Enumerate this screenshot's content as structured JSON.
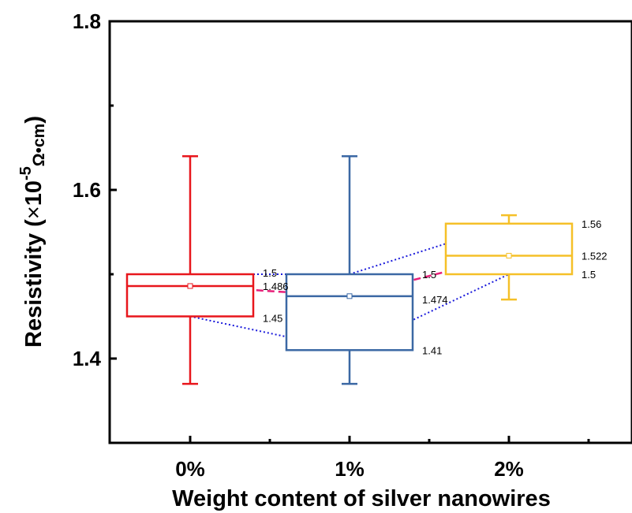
{
  "chart_data": {
    "type": "box",
    "ylim": [
      1.3,
      1.8
    ],
    "y_ticks": [
      "1.4",
      "1.6",
      "1.8"
    ],
    "categories": [
      "0%",
      "1%",
      "2%"
    ],
    "xlabel": "Weight content of silver nanowires",
    "ylabel": {
      "prefix": "Resistivity (",
      "times": "×",
      "base": "10",
      "exponent": "-5",
      "unit": "Ω•cm",
      "suffix": ")"
    },
    "series": [
      {
        "category": "0%",
        "color": "#e8161c",
        "whisker_min": 1.37,
        "q1": 1.45,
        "median": 1.486,
        "mean": 1.486,
        "q3": 1.5,
        "whisker_max": 1.64,
        "labels": {
          "q3": "1.5",
          "median": "1.486",
          "q1": "1.45"
        }
      },
      {
        "category": "1%",
        "color": "#3b68a4",
        "whisker_min": 1.37,
        "q1": 1.41,
        "median": 1.474,
        "mean": 1.474,
        "q3": 1.5,
        "whisker_max": 1.64,
        "labels": {
          "q3": "1.5",
          "median": "1.474",
          "q1": "1.41"
        }
      },
      {
        "category": "2%",
        "color": "#f5c028",
        "whisker_min": 1.47,
        "q1": 1.5,
        "median": 1.522,
        "mean": 1.522,
        "q3": 1.56,
        "whisker_max": 1.57,
        "labels": {
          "q3": "1.56",
          "median": "1.522",
          "q1": "1.5"
        }
      }
    ],
    "connectors": {
      "median_line_color": "#e8217a",
      "quartile_line_color": "#1a1adb"
    }
  }
}
